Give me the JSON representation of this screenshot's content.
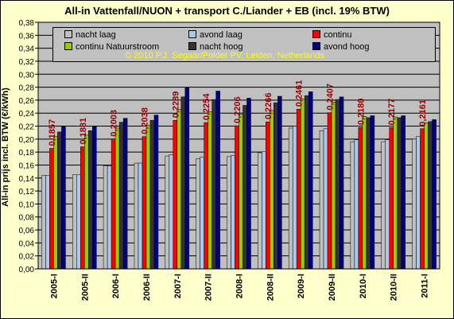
{
  "chart_data": {
    "type": "bar",
    "title": "All-in Vattenfall/NUON + transport C./Liander + EB (incl. 19% BTW)",
    "ylabel": "All-in prijs incl. BTW (€/kWh)",
    "xlabel": "",
    "ylim": [
      0,
      0.38
    ],
    "ytick_step": 0.02,
    "grid": true,
    "legend_position": "top",
    "categories": [
      "2005-I",
      "2005-II",
      "2006-I",
      "2006-II",
      "2007-I",
      "2007-II",
      "2008-I",
      "2008-II",
      "2009-I",
      "2009-II",
      "2010-I",
      "2010-II",
      "2011-I"
    ],
    "series": [
      {
        "name": "nacht laag",
        "color": "#c0c0c0",
        "values": [
          0.144,
          0.145,
          0.159,
          0.163,
          0.174,
          0.17,
          0.173,
          0.179,
          0.217,
          0.213,
          0.196,
          0.196,
          0.2
        ]
      },
      {
        "name": "avond laag",
        "color": "#a6caf0",
        "values": [
          0.144,
          0.145,
          0.159,
          0.163,
          0.176,
          0.172,
          0.175,
          0.181,
          0.22,
          0.216,
          0.199,
          0.199,
          0.204
        ]
      },
      {
        "name": "continu",
        "color": "#ff0000",
        "values": [
          0.1857,
          0.1881,
          0.2003,
          0.2038,
          0.2289,
          0.2254,
          0.2206,
          0.2266,
          0.2461,
          0.2407,
          0.218,
          0.2177,
          0.2161
        ]
      },
      {
        "name": "continu Natuurstroom",
        "color": "#99cc00",
        "values": [
          0.204,
          0.206,
          0.217,
          0.221,
          0.246,
          0.242,
          0.238,
          0.244,
          0.262,
          0.257,
          0.235,
          0.234,
          0.225
        ]
      },
      {
        "name": "nacht hoog",
        "color": "#333333",
        "values": [
          0.211,
          0.213,
          0.226,
          0.229,
          0.265,
          0.261,
          0.252,
          0.256,
          0.267,
          0.261,
          0.233,
          0.233,
          0.227
        ]
      },
      {
        "name": "avond hoog",
        "color": "#000080",
        "values": [
          0.219,
          0.22,
          0.232,
          0.237,
          0.279,
          0.274,
          0.263,
          0.266,
          0.273,
          0.265,
          0.236,
          0.236,
          0.23
        ]
      }
    ],
    "data_labels": {
      "series": "continu",
      "color": "#990000",
      "texts": [
        "0,1857",
        "0,1881",
        "0,2003",
        "0,2038",
        "0,2289",
        "0,2254",
        "0,2206",
        "0,2266",
        "0,2461",
        "0,2407",
        "0,2180",
        "0,2177",
        "0,2161"
      ]
    },
    "annotation": "© 2010 P.J. Segaar/Polder PV, Leiden, Netherlands"
  },
  "colors": {
    "plot_background": "#c0c0c0",
    "page_background": "#ffffcc",
    "annotation": "#ffff00"
  }
}
